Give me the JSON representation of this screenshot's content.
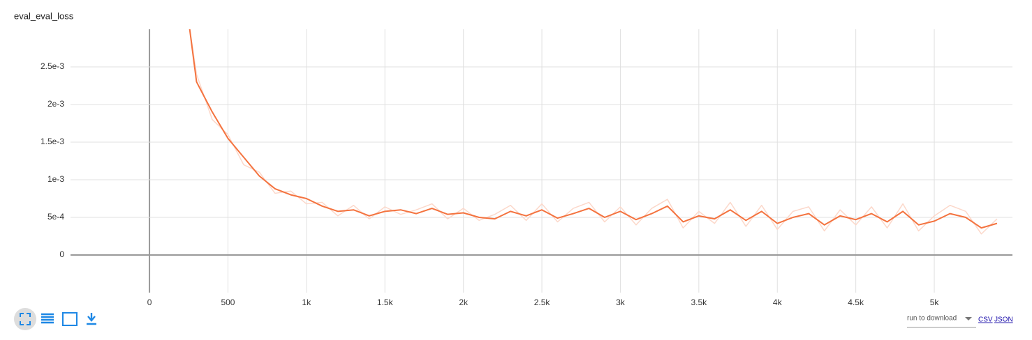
{
  "chart_data": {
    "type": "line",
    "title": "eval_eval_loss",
    "x": [
      250,
      300,
      400,
      500,
      600,
      700,
      800,
      900,
      1000,
      1100,
      1200,
      1300,
      1400,
      1500,
      1600,
      1700,
      1800,
      1900,
      2000,
      2100,
      2200,
      2300,
      2400,
      2500,
      2600,
      2700,
      2800,
      2900,
      3000,
      3100,
      3200,
      3300,
      3400,
      3500,
      3600,
      3700,
      3800,
      3900,
      4000,
      4100,
      4200,
      4300,
      4400,
      4500,
      4600,
      4700,
      4800,
      4900,
      5000,
      5100,
      5200,
      5300,
      5400
    ],
    "series": [
      {
        "color": "#fcd8ca",
        "values": [
          0.0031,
          0.0024,
          0.0018,
          0.0016,
          0.0012,
          0.0011,
          0.00082,
          0.00085,
          0.00068,
          0.0007,
          0.00052,
          0.00066,
          0.00048,
          0.00064,
          0.00054,
          0.0006,
          0.00068,
          0.00048,
          0.00062,
          0.00046,
          0.00054,
          0.00066,
          0.00046,
          0.00068,
          0.00044,
          0.00062,
          0.0007,
          0.00044,
          0.00064,
          0.0004,
          0.00062,
          0.00074,
          0.00036,
          0.00058,
          0.00042,
          0.0007,
          0.00038,
          0.00066,
          0.00034,
          0.00058,
          0.00064,
          0.00032,
          0.0006,
          0.0004,
          0.00064,
          0.00036,
          0.00068,
          0.00032,
          0.00052,
          0.00066,
          0.00058,
          0.00028,
          0.00048
        ]
      },
      {
        "color": "#f4733f",
        "values": [
          0.0031,
          0.0023,
          0.0019,
          0.00155,
          0.0013,
          0.00105,
          0.00088,
          0.0008,
          0.00075,
          0.00065,
          0.00058,
          0.0006,
          0.00052,
          0.00058,
          0.0006,
          0.00055,
          0.00062,
          0.00054,
          0.00056,
          0.0005,
          0.00048,
          0.00058,
          0.00052,
          0.0006,
          0.00049,
          0.00055,
          0.00062,
          0.0005,
          0.00058,
          0.00047,
          0.00055,
          0.00065,
          0.00044,
          0.00052,
          0.00048,
          0.0006,
          0.00046,
          0.00058,
          0.00042,
          0.0005,
          0.00055,
          0.0004,
          0.00052,
          0.00047,
          0.00055,
          0.00044,
          0.00058,
          0.0004,
          0.00045,
          0.00055,
          0.0005,
          0.00036,
          0.00042
        ]
      }
    ],
    "xlim": [
      -503,
      5498
    ],
    "ylim": [
      -0.0005,
      0.003
    ],
    "xticks": [
      0,
      500,
      {
        "value": 1000,
        "label": "1k"
      },
      {
        "value": 1500,
        "label": "1.5k"
      },
      {
        "value": 2000,
        "label": "2k"
      },
      {
        "value": 2500,
        "label": "2.5k"
      },
      {
        "value": 3000,
        "label": "3k"
      },
      {
        "value": 3500,
        "label": "3.5k"
      },
      {
        "value": 4000,
        "label": "4k"
      },
      {
        "value": 4500,
        "label": "4.5k"
      },
      {
        "value": 5000,
        "label": "5k"
      }
    ],
    "yticks": [
      0,
      {
        "value": 0.0005,
        "label": "5e-4"
      },
      {
        "value": 0.001,
        "label": "1e-3"
      },
      {
        "value": 0.0015,
        "label": "1.5e-3"
      },
      {
        "value": 0.002,
        "label": "2e-3"
      },
      {
        "value": 0.0025,
        "label": "2.5e-3"
      }
    ],
    "grid": true
  },
  "ui": {
    "download_label": "run to download",
    "links": [
      "CSV",
      "JSON"
    ]
  }
}
